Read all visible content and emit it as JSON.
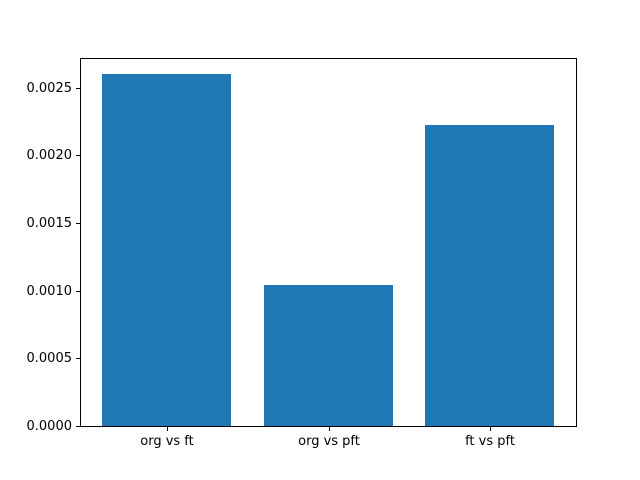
{
  "figure": {
    "background": "#ffffff",
    "text_color": "#000000",
    "spine_color": "#000000"
  },
  "chart_data": {
    "type": "bar",
    "title": "",
    "xlabel": "",
    "ylabel": "",
    "categories": [
      "org vs ft",
      "org vs pft",
      "ft vs pft"
    ],
    "values": [
      0.00261,
      0.00105,
      0.00223
    ],
    "bar_color": "#1f77b4",
    "bar_width": 0.8,
    "x_positions": [
      0,
      1,
      2
    ],
    "xlim": [
      -0.54,
      2.54
    ],
    "ylim": [
      0,
      0.002727
    ],
    "yticks": [
      0.0,
      0.0005,
      0.001,
      0.0015,
      0.002,
      0.0025
    ],
    "ytick_decimals": 4,
    "grid": false,
    "legend": "none"
  }
}
